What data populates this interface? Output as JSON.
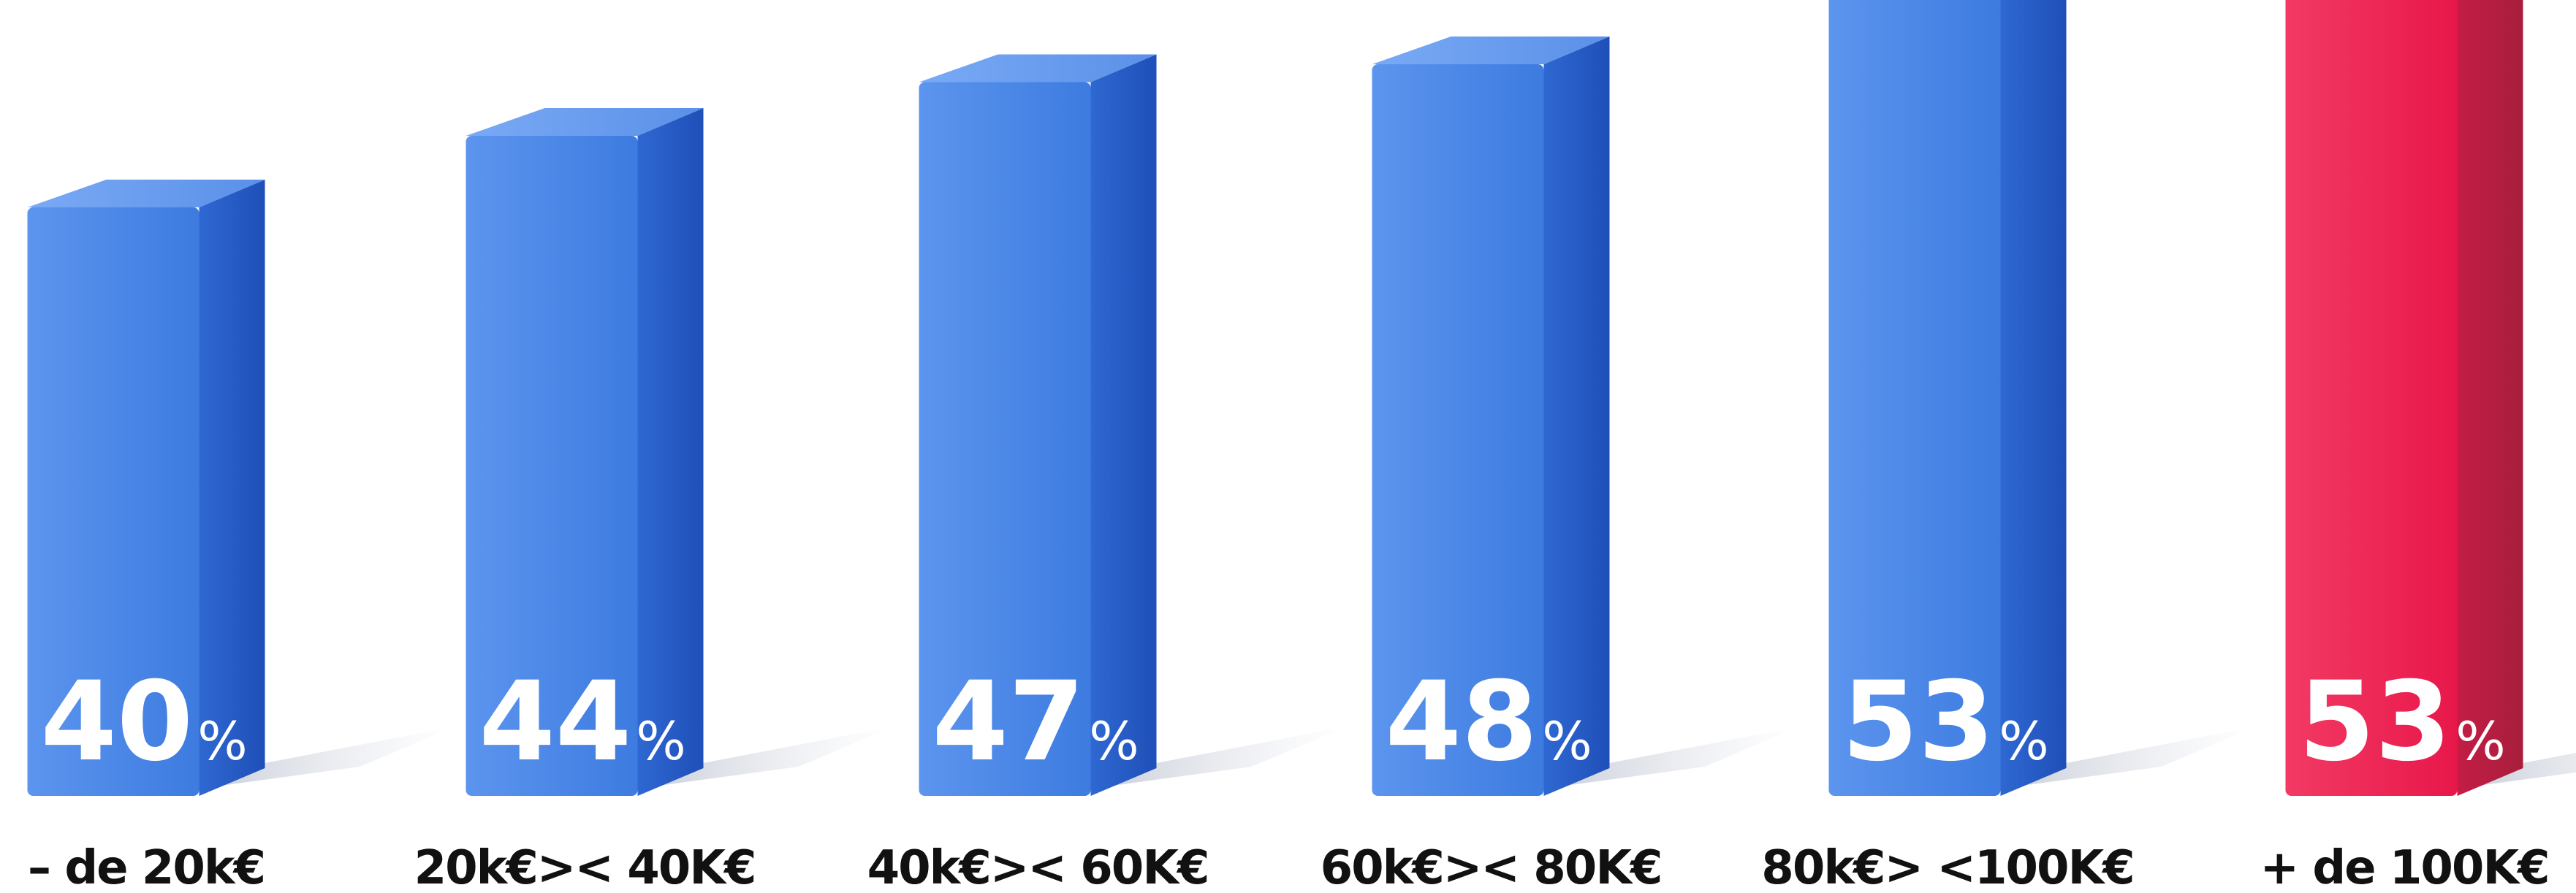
{
  "chart_data": {
    "type": "bar",
    "categories": [
      "– de 20k€",
      "20k€>< 40K€",
      "40k€>< 60K€",
      "60k€>< 80K€",
      "80k€> <100K€",
      "+ de 100K€"
    ],
    "values": [
      40,
      44,
      47,
      48,
      53,
      53
    ],
    "value_suffix": "%",
    "title": "",
    "xlabel": "",
    "ylabel": "",
    "ylim": [
      0,
      60
    ],
    "grid": false,
    "legend": "none",
    "highlight_index": 5,
    "colors": {
      "bar": "#3d7be0",
      "bar_dark": "#2356c4",
      "bar_light": "#5c95ee",
      "highlight": "#e8174a",
      "highlight_dark": "#a81e3c",
      "highlight_light": "#f23a64",
      "label": "#111111",
      "value_text": "#ffffff"
    }
  }
}
